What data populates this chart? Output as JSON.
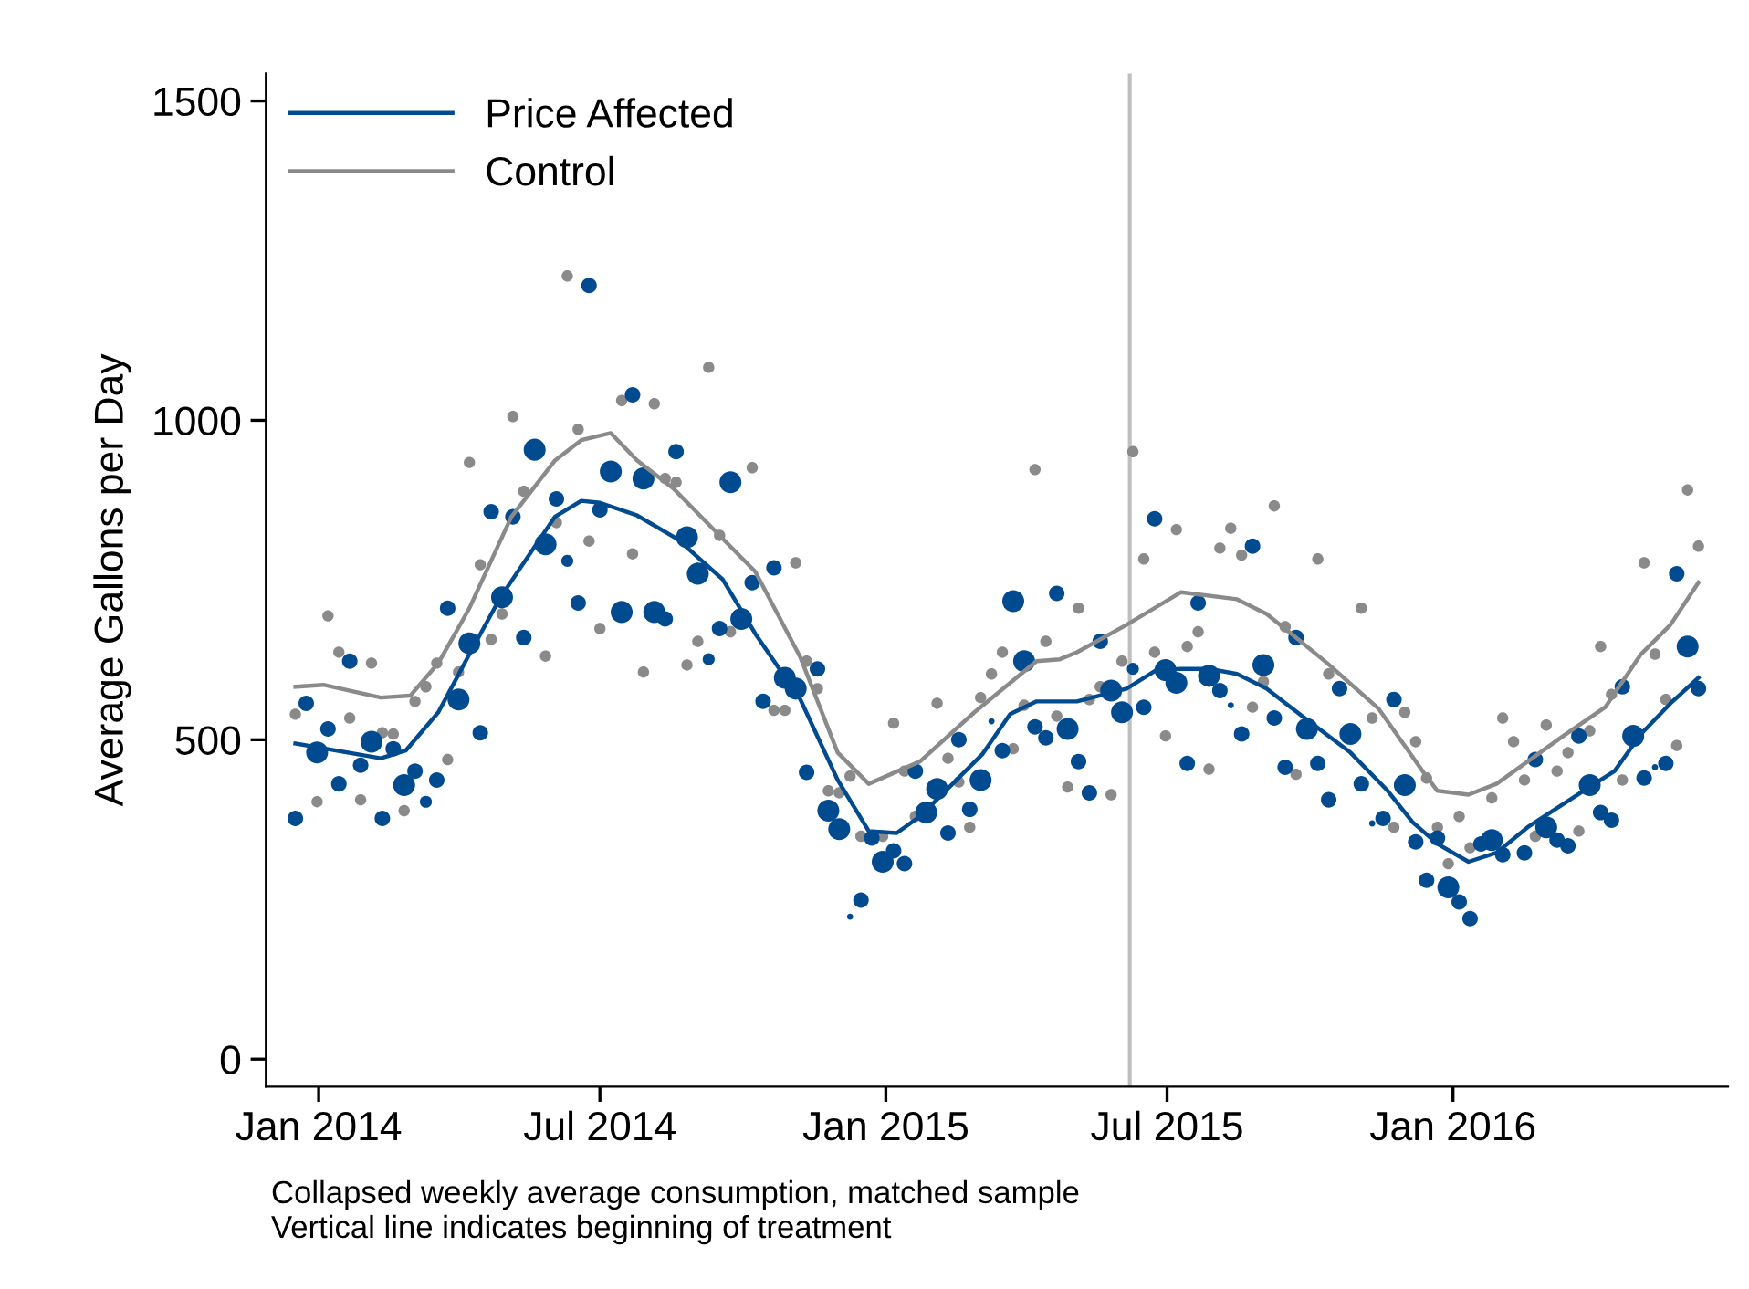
{
  "chart_data": {
    "type": "line",
    "ylabel": "Average Gallons per Day",
    "annotations": [
      "Collapsed weekly average consumption, matched sample",
      "Vertical line indicates beginning of treatment"
    ],
    "xlim": [
      "2013-11-28",
      "2016-06-26"
    ],
    "xticks": [
      {
        "value": "2014-01-01",
        "label": "Jan 2014"
      },
      {
        "value": "2014-07-01",
        "label": "Jul 2014"
      },
      {
        "value": "2015-01-01",
        "label": "Jan 2015"
      },
      {
        "value": "2015-07-01",
        "label": "Jul 2015"
      },
      {
        "value": "2016-01-01",
        "label": "Jan 2016"
      }
    ],
    "ylim": [
      -43,
      1543
    ],
    "yticks": [
      0,
      500,
      1000,
      1500
    ],
    "grid": false,
    "legend": "top left",
    "ref_lines": [
      {
        "axis": "x",
        "value": "2015-06-07",
        "color": "#bfbfbf"
      }
    ],
    "series": [
      {
        "name": "Price Affected",
        "color": "#004a8f",
        "marker": "none",
        "x": [
          "2013-12-17",
          "2014-02-10",
          "2014-02-26",
          "2014-03-19",
          "2014-04-08",
          "2014-04-28",
          "2014-06-02",
          "2014-06-19",
          "2014-07-01",
          "2014-07-25",
          "2014-08-20",
          "2014-09-18",
          "2014-10-09",
          "2014-11-07",
          "2014-12-01",
          "2014-12-21",
          "2015-01-08",
          "2015-01-23",
          "2015-03-04",
          "2015-03-22",
          "2015-04-08",
          "2015-05-04",
          "2015-06-05",
          "2015-06-24",
          "2015-07-10",
          "2015-07-28",
          "2015-08-15",
          "2015-09-03",
          "2015-09-26",
          "2015-10-27",
          "2015-11-20",
          "2015-12-06",
          "2015-12-22",
          "2016-01-11",
          "2016-01-29",
          "2016-02-18",
          "2016-03-27",
          "2016-04-14",
          "2016-05-01",
          "2016-05-20",
          "2016-06-07"
        ],
        "values": [
          494,
          471,
          483,
          543,
          634,
          723,
          849,
          874,
          871,
          851,
          814,
          751,
          666,
          563,
          437,
          357,
          354,
          380,
          477,
          540,
          560,
          560,
          580,
          609,
          611,
          611,
          603,
          580,
          537,
          480,
          420,
          371,
          337,
          309,
          323,
          363,
          423,
          451,
          509,
          557,
          597
        ]
      },
      {
        "name": "Control",
        "color": "#8a8a8a",
        "marker": "none",
        "x": [
          "2013-12-17",
          "2014-01-04",
          "2014-02-10",
          "2014-03-01",
          "2014-03-19",
          "2014-04-08",
          "2014-05-05",
          "2014-06-02",
          "2014-06-19",
          "2014-07-08",
          "2014-07-25",
          "2014-08-17",
          "2014-10-09",
          "2014-11-07",
          "2014-12-01",
          "2014-12-21",
          "2015-01-23",
          "2015-02-27",
          "2015-04-08",
          "2015-04-23",
          "2015-05-04",
          "2015-06-05",
          "2015-07-10",
          "2015-08-15",
          "2015-09-03",
          "2015-09-19",
          "2015-10-12",
          "2015-11-14",
          "2015-12-13",
          "2015-12-22",
          "2016-01-11",
          "2016-01-29",
          "2016-03-12",
          "2016-04-08",
          "2016-05-01",
          "2016-05-20",
          "2016-06-07"
        ],
        "values": [
          583,
          586,
          566,
          569,
          620,
          706,
          849,
          937,
          969,
          980,
          937,
          894,
          763,
          629,
          480,
          431,
          466,
          543,
          623,
          626,
          637,
          680,
          731,
          720,
          697,
          666,
          620,
          549,
          449,
          420,
          414,
          431,
          506,
          551,
          634,
          680,
          746
        ]
      },
      {
        "type": "bubble",
        "color": "#004a8f",
        "marker": "circle",
        "x": [
          "2013-12-17",
          "2013-12-24",
          "2013-12-31",
          "2014-01-07",
          "2014-01-14",
          "2014-01-21",
          "2014-01-28",
          "2014-02-04",
          "2014-02-11",
          "2014-02-18",
          "2014-02-25",
          "2014-03-04",
          "2014-03-11",
          "2014-03-18",
          "2014-03-25",
          "2014-04-01",
          "2014-04-08",
          "2014-04-15",
          "2014-04-22",
          "2014-04-29",
          "2014-05-06",
          "2014-05-13",
          "2014-05-20",
          "2014-05-27",
          "2014-06-03",
          "2014-06-10",
          "2014-06-17",
          "2014-06-24",
          "2014-07-01",
          "2014-07-08",
          "2014-07-15",
          "2014-07-22",
          "2014-07-29",
          "2014-08-05",
          "2014-08-12",
          "2014-08-19",
          "2014-08-26",
          "2014-09-02",
          "2014-09-09",
          "2014-09-16",
          "2014-09-23",
          "2014-09-30",
          "2014-10-07",
          "2014-10-14",
          "2014-10-21",
          "2014-10-28",
          "2014-11-04",
          "2014-11-11",
          "2014-11-18",
          "2014-11-25",
          "2014-12-02",
          "2014-12-09",
          "2014-12-16",
          "2014-12-23",
          "2014-12-30",
          "2015-01-06",
          "2015-01-13",
          "2015-01-20",
          "2015-01-27",
          "2015-02-03",
          "2015-02-10",
          "2015-02-17",
          "2015-02-24",
          "2015-03-03",
          "2015-03-10",
          "2015-03-17",
          "2015-03-24",
          "2015-03-31",
          "2015-04-07",
          "2015-04-14",
          "2015-04-21",
          "2015-04-28",
          "2015-05-05",
          "2015-05-12",
          "2015-05-19",
          "2015-05-26",
          "2015-06-02",
          "2015-06-09",
          "2015-06-16",
          "2015-06-23",
          "2015-06-30",
          "2015-07-07",
          "2015-07-14",
          "2015-07-21",
          "2015-07-28",
          "2015-08-04",
          "2015-08-11",
          "2015-08-18",
          "2015-08-25",
          "2015-09-01",
          "2015-09-08",
          "2015-09-15",
          "2015-09-22",
          "2015-09-29",
          "2015-10-06",
          "2015-10-13",
          "2015-10-20",
          "2015-10-27",
          "2015-11-03",
          "2015-11-10",
          "2015-11-17",
          "2015-11-24",
          "2015-12-01",
          "2015-12-08",
          "2015-12-15",
          "2015-12-22",
          "2015-12-29",
          "2016-01-05",
          "2016-01-12",
          "2016-01-19",
          "2016-01-26",
          "2016-02-02",
          "2016-02-16",
          "2016-02-23",
          "2016-03-01",
          "2016-03-08",
          "2016-03-15",
          "2016-03-22",
          "2016-03-29",
          "2016-04-05",
          "2016-04-12",
          "2016-04-19",
          "2016-04-26",
          "2016-05-03",
          "2016-05-10",
          "2016-05-17",
          "2016-05-24",
          "2016-05-31",
          "2016-06-07"
        ],
        "values": [
          377,
          557,
          480,
          517,
          431,
          623,
          460,
          497,
          377,
          486,
          429,
          451,
          403,
          437,
          706,
          563,
          651,
          511,
          857,
          723,
          849,
          660,
          954,
          806,
          877,
          780,
          714,
          1211,
          860,
          920,
          700,
          1040,
          909,
          700,
          689,
          951,
          817,
          760,
          626,
          674,
          903,
          689,
          746,
          560,
          769,
          597,
          580,
          449,
          611,
          389,
          360,
          223,
          249,
          346,
          309,
          326,
          306,
          451,
          386,
          423,
          354,
          500,
          391,
          437,
          529,
          483,
          717,
          623,
          520,
          503,
          729,
          517,
          466,
          417,
          654,
          577,
          543,
          611,
          551,
          846,
          609,
          589,
          463,
          714,
          600,
          577,
          554,
          509,
          803,
          617,
          534,
          457,
          660,
          517,
          463,
          406,
          580,
          509,
          431,
          369,
          377,
          563,
          429,
          340,
          280,
          346,
          269,
          246,
          220,
          337,
          343,
          320,
          323,
          469,
          363,
          343,
          334,
          506,
          429,
          386,
          374,
          583,
          506,
          440,
          457,
          463,
          760,
          646,
          580
        ],
        "sizes": [
          0.5,
          0.5,
          1,
          0.5,
          0.5,
          0.5,
          0.5,
          1,
          0.5,
          0.5,
          1,
          0.5,
          0.3,
          0.5,
          0.5,
          1,
          1,
          0.5,
          0.5,
          1,
          0.5,
          0.5,
          1,
          1,
          0.5,
          0.3,
          0.5,
          0.5,
          0.5,
          1,
          1,
          0.5,
          1,
          1,
          0.5,
          0.5,
          1,
          1,
          0.3,
          0.5,
          1,
          1,
          0.5,
          0.5,
          0.5,
          1,
          1,
          0.5,
          0.5,
          1,
          1,
          0.08,
          0.5,
          0.5,
          1,
          0.5,
          0.5,
          0.5,
          1,
          1,
          0.5,
          0.5,
          0.5,
          1,
          0.08,
          0.5,
          1,
          1,
          0.5,
          0.5,
          0.5,
          1,
          0.5,
          0.5,
          0.5,
          1,
          1,
          0.3,
          0.5,
          0.5,
          1,
          1,
          0.5,
          0.5,
          1,
          0.5,
          0.08,
          0.5,
          0.5,
          1,
          0.5,
          0.5,
          0.5,
          1,
          0.5,
          0.5,
          0.5,
          1,
          0.5,
          0.08,
          0.5,
          0.5,
          1,
          0.5,
          0.5,
          0.5,
          1,
          0.5,
          0.5,
          0.5,
          1,
          0.5,
          0.5,
          0.5,
          1,
          0.5,
          0.5,
          0.5,
          1,
          0.5,
          0.5,
          0.5,
          1,
          0.5,
          0.08,
          0.5,
          0.5,
          1,
          0.5
        ]
      },
      {
        "type": "scatter",
        "color": "#8a8a8a",
        "marker": "circle",
        "x": [
          "2013-12-17",
          "2013-12-31",
          "2014-01-07",
          "2014-01-14",
          "2014-01-21",
          "2014-01-28",
          "2014-02-04",
          "2014-02-11",
          "2014-02-18",
          "2014-02-25",
          "2014-03-04",
          "2014-03-11",
          "2014-03-18",
          "2014-03-25",
          "2014-04-01",
          "2014-04-08",
          "2014-04-15",
          "2014-04-22",
          "2014-04-29",
          "2014-05-06",
          "2014-05-13",
          "2014-05-27",
          "2014-06-03",
          "2014-06-10",
          "2014-06-17",
          "2014-06-24",
          "2014-07-01",
          "2014-07-15",
          "2014-07-22",
          "2014-07-29",
          "2014-08-05",
          "2014-08-12",
          "2014-08-19",
          "2014-08-26",
          "2014-09-02",
          "2014-09-09",
          "2014-09-16",
          "2014-09-23",
          "2014-10-07",
          "2014-10-21",
          "2014-10-28",
          "2014-11-04",
          "2014-11-11",
          "2014-11-18",
          "2014-11-25",
          "2014-12-02",
          "2014-12-09",
          "2014-12-16",
          "2014-12-30",
          "2015-01-06",
          "2015-01-13",
          "2015-01-20",
          "2015-02-03",
          "2015-02-10",
          "2015-02-17",
          "2015-02-24",
          "2015-03-03",
          "2015-03-10",
          "2015-03-17",
          "2015-03-24",
          "2015-03-31",
          "2015-04-07",
          "2015-04-14",
          "2015-04-21",
          "2015-04-28",
          "2015-05-05",
          "2015-05-12",
          "2015-05-19",
          "2015-05-26",
          "2015-06-02",
          "2015-06-09",
          "2015-06-16",
          "2015-06-23",
          "2015-06-30",
          "2015-07-07",
          "2015-07-14",
          "2015-07-21",
          "2015-07-28",
          "2015-08-04",
          "2015-08-11",
          "2015-08-18",
          "2015-08-25",
          "2015-09-01",
          "2015-09-08",
          "2015-09-15",
          "2015-09-22",
          "2015-10-06",
          "2015-10-13",
          "2015-11-03",
          "2015-11-10",
          "2015-11-24",
          "2015-12-01",
          "2015-12-08",
          "2015-12-15",
          "2015-12-22",
          "2015-12-29",
          "2016-01-05",
          "2016-01-12",
          "2016-01-19",
          "2016-01-26",
          "2016-02-02",
          "2016-02-09",
          "2016-02-16",
          "2016-02-23",
          "2016-03-01",
          "2016-03-08",
          "2016-03-15",
          "2016-03-22",
          "2016-03-29",
          "2016-04-05",
          "2016-04-12",
          "2016-04-19",
          "2016-05-03",
          "2016-05-10",
          "2016-05-17",
          "2016-05-24",
          "2016-05-31",
          "2016-06-07"
        ],
        "values": [
          540,
          403,
          694,
          637,
          534,
          406,
          620,
          511,
          509,
          389,
          560,
          583,
          620,
          469,
          606,
          934,
          774,
          657,
          697,
          1006,
          889,
          631,
          840,
          1226,
          986,
          811,
          674,
          1031,
          791,
          606,
          1026,
          909,
          903,
          617,
          654,
          1083,
          820,
          669,
          926,
          546,
          546,
          777,
          623,
          580,
          420,
          417,
          443,
          349,
          349,
          526,
          451,
          380,
          557,
          471,
          434,
          363,
          566,
          603,
          637,
          486,
          554,
          923,
          654,
          537,
          426,
          706,
          563,
          583,
          414,
          623,
          951,
          783,
          637,
          506,
          829,
          646,
          669,
          454,
          800,
          831,
          789,
          551,
          591,
          866,
          677,
          446,
          783,
          603,
          706,
          534,
          363,
          543,
          497,
          440,
          363,
          306,
          380,
          331,
          null,
          409,
          534,
          497,
          437,
          349,
          523,
          451,
          480,
          357,
          514,
          646,
          571,
          437,
          777,
          634,
          563,
          491,
          891,
          803
        ]
      }
    ]
  }
}
